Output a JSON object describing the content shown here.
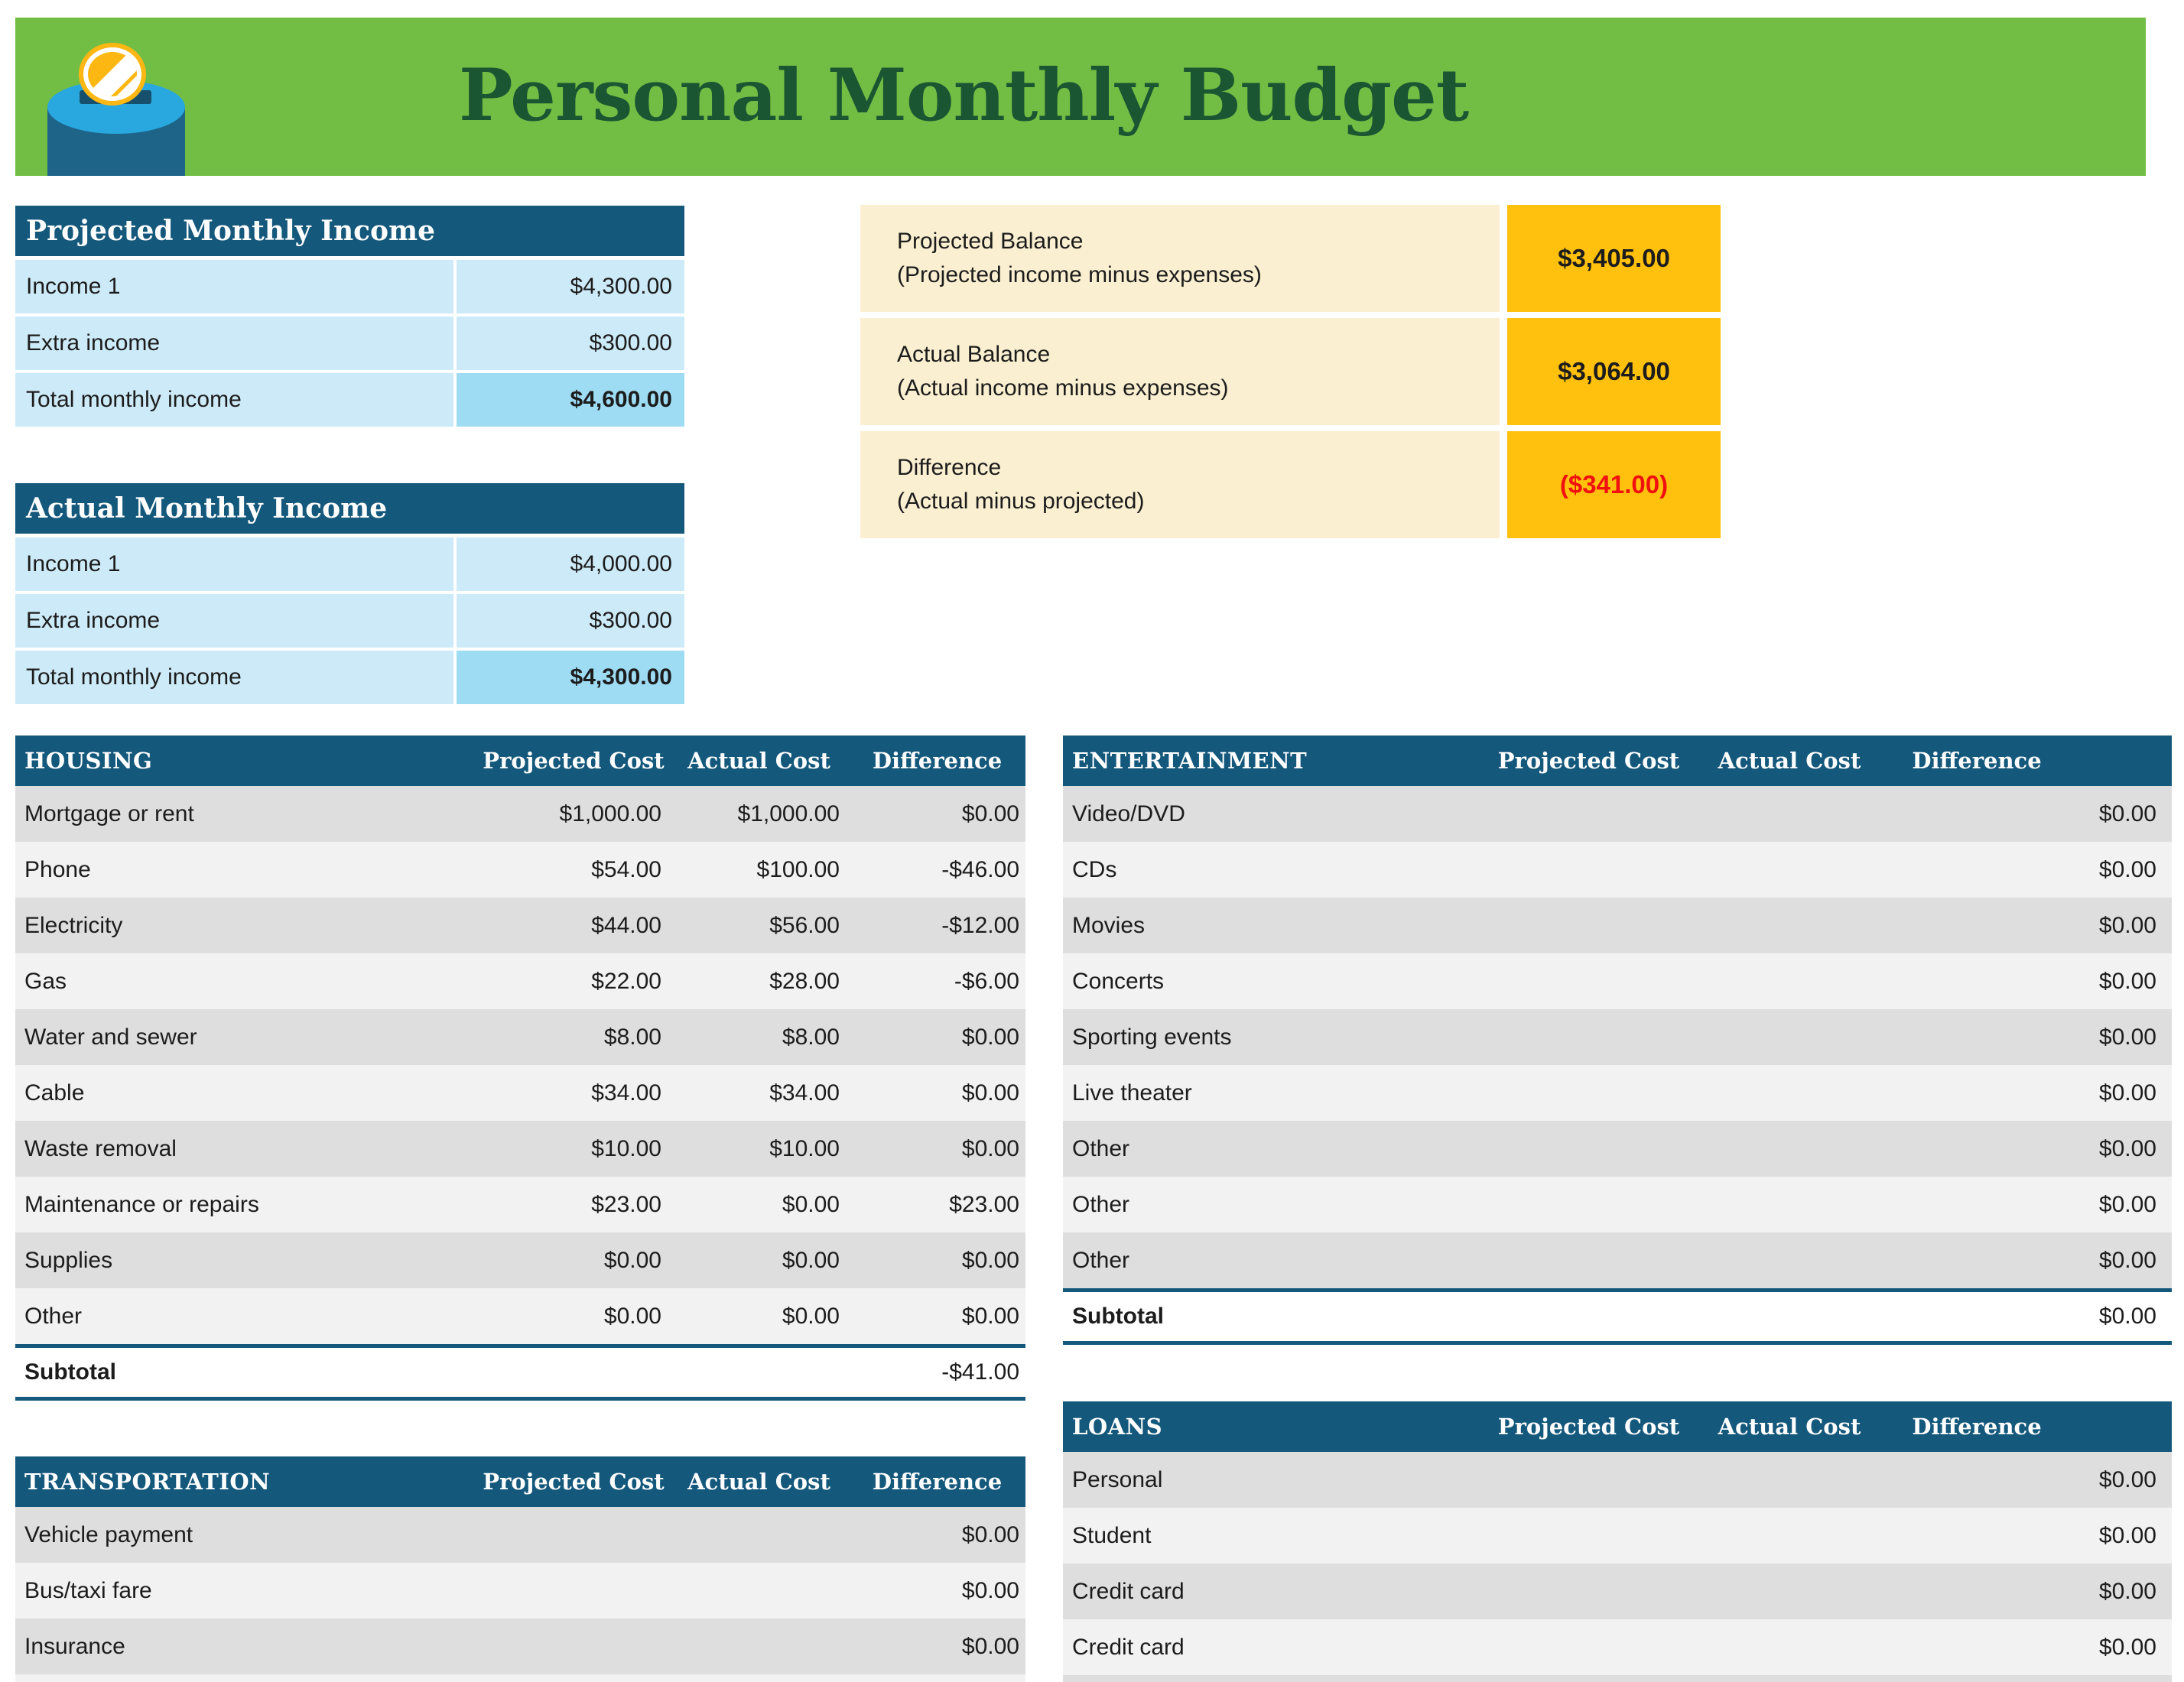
{
  "header": {
    "title": "Personal Monthly Budget",
    "icon": "coin-jar-icon"
  },
  "colors": {
    "banner_green": "#72BE44",
    "title_green": "#1A5632",
    "teal_header": "#14587C",
    "light_blue": "#CDEAF8",
    "highlight_blue": "#9EDCF4",
    "cream": "#FAEFD0",
    "amber": "#FFC10D",
    "negative_red": "#F01010",
    "row_dark": "#DEDEDE",
    "row_light": "#F2F2F2",
    "text_dark": "#1C1C1C"
  },
  "income_tables": [
    {
      "title": "Projected Monthly Income",
      "rows": [
        {
          "label": "Income 1",
          "value": "$4,300.00",
          "total": false
        },
        {
          "label": "Extra income",
          "value": "$300.00",
          "total": false
        },
        {
          "label": "Total monthly income",
          "value": "$4,600.00",
          "total": true
        }
      ]
    },
    {
      "title": "Actual Monthly Income",
      "rows": [
        {
          "label": "Income 1",
          "value": "$4,000.00",
          "total": false
        },
        {
          "label": "Extra income",
          "value": "$300.00",
          "total": false
        },
        {
          "label": "Total monthly income",
          "value": "$4,300.00",
          "total": true
        }
      ]
    }
  ],
  "balance_summary": [
    {
      "label": "Projected Balance",
      "sublabel": "(Projected income minus expenses)",
      "value": "$3,405.00",
      "negative": false
    },
    {
      "label": "Actual Balance",
      "sublabel": "(Actual income minus expenses)",
      "value": "$3,064.00",
      "negative": false
    },
    {
      "label": "Difference",
      "sublabel": "(Actual minus projected)",
      "value": "($341.00)",
      "negative": true
    }
  ],
  "expense_columns": [
    "Projected Cost",
    "Actual Cost",
    "Difference"
  ],
  "expense_tables": [
    {
      "id": "housing",
      "title": "HOUSING",
      "rows": [
        {
          "label": "Mortgage or rent",
          "projected": "$1,000.00",
          "actual": "$1,000.00",
          "difference": "$0.00"
        },
        {
          "label": "Phone",
          "projected": "$54.00",
          "actual": "$100.00",
          "difference": "-$46.00"
        },
        {
          "label": "Electricity",
          "projected": "$44.00",
          "actual": "$56.00",
          "difference": "-$12.00"
        },
        {
          "label": "Gas",
          "projected": "$22.00",
          "actual": "$28.00",
          "difference": "-$6.00"
        },
        {
          "label": "Water and sewer",
          "projected": "$8.00",
          "actual": "$8.00",
          "difference": "$0.00"
        },
        {
          "label": "Cable",
          "projected": "$34.00",
          "actual": "$34.00",
          "difference": "$0.00"
        },
        {
          "label": "Waste removal",
          "projected": "$10.00",
          "actual": "$10.00",
          "difference": "$0.00"
        },
        {
          "label": "Maintenance or repairs",
          "projected": "$23.00",
          "actual": "$0.00",
          "difference": "$23.00"
        },
        {
          "label": "Supplies",
          "projected": "$0.00",
          "actual": "$0.00",
          "difference": "$0.00"
        },
        {
          "label": "Other",
          "projected": "$0.00",
          "actual": "$0.00",
          "difference": "$0.00"
        }
      ],
      "subtotal": {
        "label": "Subtotal",
        "value": "-$41.00"
      },
      "partial_row": false
    },
    {
      "id": "entertainment",
      "title": "ENTERTAINMENT",
      "rows": [
        {
          "label": "Video/DVD",
          "projected": "",
          "actual": "",
          "difference": "$0.00"
        },
        {
          "label": "CDs",
          "projected": "",
          "actual": "",
          "difference": "$0.00"
        },
        {
          "label": "Movies",
          "projected": "",
          "actual": "",
          "difference": "$0.00"
        },
        {
          "label": "Concerts",
          "projected": "",
          "actual": "",
          "difference": "$0.00"
        },
        {
          "label": "Sporting events",
          "projected": "",
          "actual": "",
          "difference": "$0.00"
        },
        {
          "label": "Live theater",
          "projected": "",
          "actual": "",
          "difference": "$0.00"
        },
        {
          "label": "Other",
          "projected": "",
          "actual": "",
          "difference": "$0.00"
        },
        {
          "label": "Other",
          "projected": "",
          "actual": "",
          "difference": "$0.00"
        },
        {
          "label": "Other",
          "projected": "",
          "actual": "",
          "difference": "$0.00"
        }
      ],
      "subtotal": {
        "label": "Subtotal",
        "value": "$0.00"
      },
      "partial_row": false
    },
    {
      "id": "transportation",
      "title": "TRANSPORTATION",
      "rows": [
        {
          "label": "Vehicle payment",
          "projected": "",
          "actual": "",
          "difference": "$0.00"
        },
        {
          "label": "Bus/taxi fare",
          "projected": "",
          "actual": "",
          "difference": "$0.00"
        },
        {
          "label": "Insurance",
          "projected": "",
          "actual": "",
          "difference": "$0.00"
        }
      ],
      "subtotal": null,
      "partial_row": true
    },
    {
      "id": "loans",
      "title": "LOANS",
      "rows": [
        {
          "label": "Personal",
          "projected": "",
          "actual": "",
          "difference": "$0.00"
        },
        {
          "label": "Student",
          "projected": "",
          "actual": "",
          "difference": "$0.00"
        },
        {
          "label": "Credit card",
          "projected": "",
          "actual": "",
          "difference": "$0.00"
        },
        {
          "label": "Credit card",
          "projected": "",
          "actual": "",
          "difference": "$0.00"
        }
      ],
      "subtotal": null,
      "partial_row": true
    }
  ]
}
